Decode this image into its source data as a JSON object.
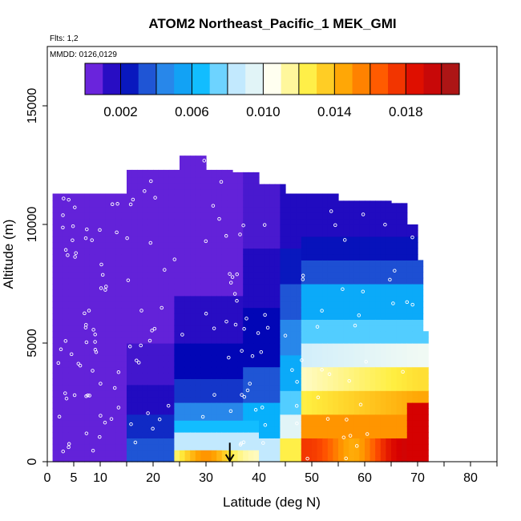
{
  "chart_data": {
    "type": "heatmap",
    "title": "ATOM2 Northeast_Pacific_1 MEK_GMI",
    "annotations": [
      "Flts: 1,2",
      "MMDD: 0126,0129"
    ],
    "xlabel": "Latitude (deg N)",
    "ylabel": "Altitude (m)",
    "xlim": [
      0,
      85
    ],
    "ylim": [
      0,
      17500
    ],
    "x_ticks": [
      0,
      5,
      10,
      20,
      30,
      40,
      50,
      60,
      70,
      80
    ],
    "x_minor_ticks": [
      15,
      25,
      35,
      45,
      55,
      65,
      75,
      85
    ],
    "y_ticks": [
      0,
      5000,
      10000,
      15000
    ],
    "grid": false,
    "colorbar": {
      "placement": "top",
      "range": [
        0,
        0.021
      ],
      "ticks": [
        0.002,
        0.006,
        0.01,
        0.014,
        0.018
      ],
      "tick_labels": [
        "0.002",
        "0.006",
        "0.010",
        "0.014",
        "0.018"
      ],
      "colors": [
        "#8b2fe8",
        "#0000b4",
        "#2f7fe6",
        "#00b8ff",
        "#bfe8ff",
        "#fffff0",
        "#ffee40",
        "#ffa000",
        "#ff5000",
        "#d80000",
        "#a01c1c"
      ]
    },
    "marker": {
      "type": "arrow",
      "x": 34.5,
      "y": 800
    },
    "model_field": {
      "description": "MEK_GMI mixing ratio along flight track",
      "columns": [
        {
          "x0": 1,
          "x1": 15,
          "top": 11300,
          "low_values": [
            [
              0,
              0.0005
            ],
            [
              2000,
              0.0005
            ],
            [
              11300,
              0.0005
            ]
          ]
        },
        {
          "x0": 15,
          "x1": 20,
          "top": 12300
        },
        {
          "x0": 20,
          "x1": 25,
          "top": 12300
        },
        {
          "x0": 25,
          "x1": 30,
          "top": 12900
        },
        {
          "x0": 30,
          "x1": 35,
          "top": 12300
        },
        {
          "x0": 35,
          "x1": 40,
          "top": 12200
        },
        {
          "x0": 40,
          "x1": 45,
          "top": 11700
        },
        {
          "x0": 45,
          "x1": 50,
          "top": 11300
        },
        {
          "x0": 50,
          "x1": 55,
          "top": 11300
        },
        {
          "x0": 55,
          "x1": 60,
          "top": 11000
        },
        {
          "x0": 60,
          "x1": 65,
          "top": 11000
        },
        {
          "x0": 65,
          "x1": 68,
          "top": 10900
        },
        {
          "x0": 68,
          "x1": 70,
          "top": 10000
        },
        {
          "x0": 70,
          "x1": 71,
          "top": 8500
        },
        {
          "x0": 71,
          "x1": 72,
          "top": 5500
        }
      ]
    }
  }
}
